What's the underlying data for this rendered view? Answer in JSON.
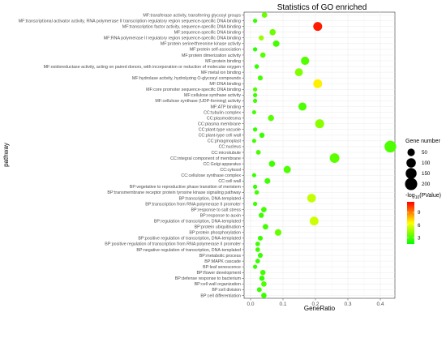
{
  "chart_data": {
    "type": "scatter",
    "title": "Statistics of GO enriched",
    "xlabel": "GeneRatio",
    "ylabel": "pathway",
    "xlim": [
      -0.02,
      0.445
    ],
    "xticks": [
      0.0,
      0.1,
      0.2,
      0.3,
      0.4
    ],
    "xtick_labels": [
      "0.0",
      "0.1",
      "0.2",
      "0.3",
      "0.4"
    ],
    "grid": true,
    "legend_placement": "right",
    "color_scale": {
      "title_prefix": "-log",
      "title_sub": "10",
      "title_suffix": "(PValue)",
      "min": 1.5,
      "max": 11.5,
      "ticks": [
        3,
        6,
        9
      ],
      "colors": [
        "#00ff00",
        "#ffff00",
        "#ff0000"
      ]
    },
    "size_scale": {
      "title": "Gene number",
      "values": [
        50,
        100,
        150,
        200
      ]
    },
    "points": [
      {
        "category": "MF:transferase activity, transferring glycosyl groups",
        "x": 0.043,
        "gene_number": 18,
        "log_p": 3.5
      },
      {
        "category": "MF:transcriptional activator activity, RNA polymerase II transcription regulatory region sequence-specific DNA binding",
        "x": 0.014,
        "gene_number": 6,
        "log_p": 2.5
      },
      {
        "category": "MF:transcription factor activity, sequence-specific DNA binding",
        "x": 0.207,
        "gene_number": 87,
        "log_p": 11.0
      },
      {
        "category": "MF:sequence-specific DNA binding",
        "x": 0.068,
        "gene_number": 29,
        "log_p": 3.6
      },
      {
        "category": "MF:RNA polymerase II regulatory region sequence-specific DNA binding",
        "x": 0.033,
        "gene_number": 14,
        "log_p": 4.5
      },
      {
        "category": "MF:protein serine/threonine kinase activity",
        "x": 0.079,
        "gene_number": 33,
        "log_p": 2.8
      },
      {
        "category": "MF:protein self-association",
        "x": 0.014,
        "gene_number": 6,
        "log_p": 2.3
      },
      {
        "category": "MF:protein dimerization activity",
        "x": 0.038,
        "gene_number": 16,
        "log_p": 3.2
      },
      {
        "category": "MF:protein binding",
        "x": 0.168,
        "gene_number": 70,
        "log_p": 3.1
      },
      {
        "category": "MF:oxidoreductase activity, acting on paired donors, with incorporation or reduction of molecular oxygen",
        "x": 0.019,
        "gene_number": 8,
        "log_p": 2.5
      },
      {
        "category": "MF:metal ion binding",
        "x": 0.149,
        "gene_number": 62,
        "log_p": 4.0
      },
      {
        "category": "MF:hydrolase activity, hydrolyzing O-glycosyl compounds",
        "x": 0.03,
        "gene_number": 12,
        "log_p": 2.8
      },
      {
        "category": "MF:DNA binding",
        "x": 0.207,
        "gene_number": 87,
        "log_p": 6.8
      },
      {
        "category": "MF:core promoter sequence-specific DNA binding",
        "x": 0.014,
        "gene_number": 6,
        "log_p": 3.0
      },
      {
        "category": "MF:cellulose synthase activity",
        "x": 0.014,
        "gene_number": 6,
        "log_p": 2.7
      },
      {
        "category": "MF:cellulose synthase (UDP-forming) activity",
        "x": 0.014,
        "gene_number": 6,
        "log_p": 2.7
      },
      {
        "category": "MF:ATP binding",
        "x": 0.16,
        "gene_number": 67,
        "log_p": 3.0
      },
      {
        "category": "CC:tubulin complex",
        "x": 0.011,
        "gene_number": 5,
        "log_p": 2.8
      },
      {
        "category": "CC:plasmodesma",
        "x": 0.063,
        "gene_number": 26,
        "log_p": 3.2
      },
      {
        "category": "CC:plasma membrane",
        "x": 0.213,
        "gene_number": 89,
        "log_p": 4.2
      },
      {
        "category": "CC:plant-type vacuole",
        "x": 0.014,
        "gene_number": 6,
        "log_p": 2.5
      },
      {
        "category": "CC:plant-type cell wall",
        "x": 0.035,
        "gene_number": 15,
        "log_p": 2.6
      },
      {
        "category": "CC:phragmoplast",
        "x": 0.011,
        "gene_number": 5,
        "log_p": 2.7
      },
      {
        "category": "CC:nucleus",
        "x": 0.431,
        "gene_number": 180,
        "log_p": 3.0
      },
      {
        "category": "CC:microtubule",
        "x": 0.024,
        "gene_number": 10,
        "log_p": 2.9
      },
      {
        "category": "CC:integral component of membrane",
        "x": 0.259,
        "gene_number": 108,
        "log_p": 3.3
      },
      {
        "category": "CC:Golgi apparatus",
        "x": 0.066,
        "gene_number": 28,
        "log_p": 2.7
      },
      {
        "category": "CC:cytosol",
        "x": 0.113,
        "gene_number": 47,
        "log_p": 3.0
      },
      {
        "category": "CC:cellulose synthase complex",
        "x": 0.011,
        "gene_number": 5,
        "log_p": 2.6
      },
      {
        "category": "CC:cell wall",
        "x": 0.052,
        "gene_number": 22,
        "log_p": 2.7
      },
      {
        "category": "BP:vegetative to reproductive phase transition of meristem",
        "x": 0.014,
        "gene_number": 6,
        "log_p": 2.5
      },
      {
        "category": "BP:transmembrane receptor protein tyrosine kinase signaling pathway",
        "x": 0.019,
        "gene_number": 8,
        "log_p": 2.8
      },
      {
        "category": "BP:transcription, DNA-templated",
        "x": 0.188,
        "gene_number": 79,
        "log_p": 5.3
      },
      {
        "category": "BP:transcription from RNA polymerase II promoter",
        "x": 0.014,
        "gene_number": 6,
        "log_p": 2.7
      },
      {
        "category": "BP:response to salt stress",
        "x": 0.041,
        "gene_number": 17,
        "log_p": 2.7
      },
      {
        "category": "BP:response to auxin",
        "x": 0.033,
        "gene_number": 14,
        "log_p": 2.6
      },
      {
        "category": "BP:regulation of transcription, DNA-templated",
        "x": 0.196,
        "gene_number": 82,
        "log_p": 5.5
      },
      {
        "category": "BP:protein ubiquitination",
        "x": 0.046,
        "gene_number": 19,
        "log_p": 2.7
      },
      {
        "category": "BP:protein phosphorylation",
        "x": 0.085,
        "gene_number": 36,
        "log_p": 3.5
      },
      {
        "category": "BP:positive regulation of transcription, DNA-templated",
        "x": 0.03,
        "gene_number": 12,
        "log_p": 2.6
      },
      {
        "category": "BP:positive regulation of transcription from RNA polymerase II promoter",
        "x": 0.022,
        "gene_number": 9,
        "log_p": 2.7
      },
      {
        "category": "BP:negative regulation of transcription, DNA-templated",
        "x": 0.022,
        "gene_number": 9,
        "log_p": 2.7
      },
      {
        "category": "BP:metabolic process",
        "x": 0.03,
        "gene_number": 12,
        "log_p": 2.6
      },
      {
        "category": "BP:MAPK cascade",
        "x": 0.022,
        "gene_number": 9,
        "log_p": 2.5
      },
      {
        "category": "BP:leaf senescence",
        "x": 0.014,
        "gene_number": 6,
        "log_p": 2.6
      },
      {
        "category": "BP:flower development",
        "x": 0.038,
        "gene_number": 16,
        "log_p": 2.8
      },
      {
        "category": "BP:defense response to bacterium",
        "x": 0.035,
        "gene_number": 15,
        "log_p": 2.5
      },
      {
        "category": "BP:cell wall organization",
        "x": 0.041,
        "gene_number": 17,
        "log_p": 3.0
      },
      {
        "category": "BP:cell division",
        "x": 0.027,
        "gene_number": 11,
        "log_p": 2.6
      },
      {
        "category": "BP:cell differentiation",
        "x": 0.041,
        "gene_number": 17,
        "log_p": 2.6
      }
    ]
  }
}
